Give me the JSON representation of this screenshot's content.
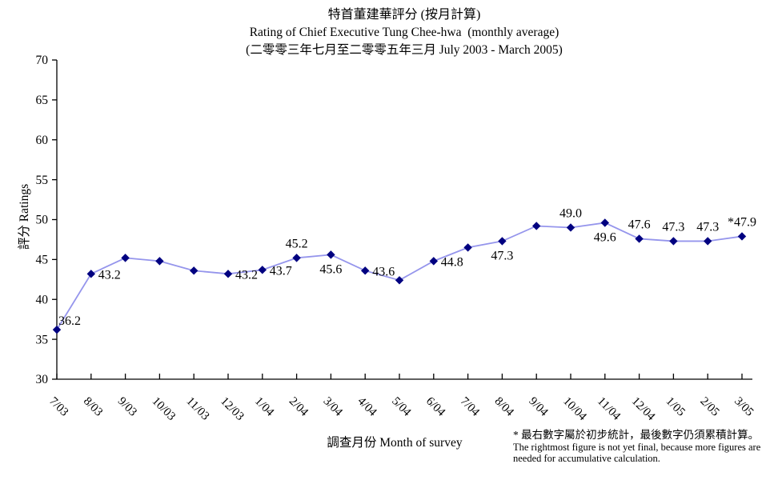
{
  "chart_data": {
    "type": "line",
    "title_lines": [
      "特首董建華評分 (按月計算)",
      "Rating of Chief Executive Tung Chee-hwa  (monthly average)",
      "(二零零三年七月至二零零五年三月 July 2003 - March 2005)"
    ],
    "xlabel": "調查月份 Month of survey",
    "ylabel": "評分 Ratings",
    "ylim": [
      30,
      70
    ],
    "ytick_step": 5,
    "yticks": [
      30,
      35,
      40,
      45,
      50,
      55,
      60,
      65,
      70
    ],
    "grid": false,
    "legend_position": "none",
    "categories": [
      "7/03",
      "8/03",
      "9/03",
      "10/03",
      "11/03",
      "12/03",
      "1/04",
      "2/04",
      "3/04",
      "4/04",
      "5/04",
      "6/04",
      "7/04",
      "8/04",
      "9/04",
      "10/04",
      "11/04",
      "12/04",
      "1/05",
      "2/05",
      "3/05"
    ],
    "series": [
      {
        "name": "Rating of Chief Executive Tung Chee-hwa",
        "values": [
          36.2,
          43.2,
          45.2,
          44.8,
          43.6,
          43.2,
          43.7,
          45.2,
          45.6,
          43.6,
          42.4,
          44.8,
          46.5,
          47.3,
          49.2,
          49.0,
          49.6,
          47.6,
          47.3,
          47.3,
          47.9
        ]
      }
    ],
    "point_labels": [
      "36.2",
      "43.2",
      "",
      "",
      "",
      "43.2",
      "43.7",
      "45.2",
      "45.6",
      "43.6",
      "",
      "44.8",
      "",
      "47.3",
      "",
      "49.0",
      "49.6",
      "47.6",
      "47.3",
      "47.3",
      "*47.9"
    ],
    "label_positions": [
      "above-right",
      "right",
      "",
      "",
      "",
      "right",
      "right",
      "above",
      "below",
      "right",
      "",
      "right",
      "",
      "below",
      "",
      "above",
      "below",
      "above",
      "above",
      "above",
      "above"
    ],
    "colors": {
      "line": "#9595EC",
      "marker": "#000080",
      "axis": "#000000",
      "text": "#000000",
      "background": "#FFFFFF"
    },
    "footnote": {
      "line_zh": "* 最右數字屬於初步統計，最後數字仍須累積計算。",
      "line_en_1": "The rightmost figure is not yet final, because more figures are",
      "line_en_2": "needed for accumulative calculation."
    }
  }
}
